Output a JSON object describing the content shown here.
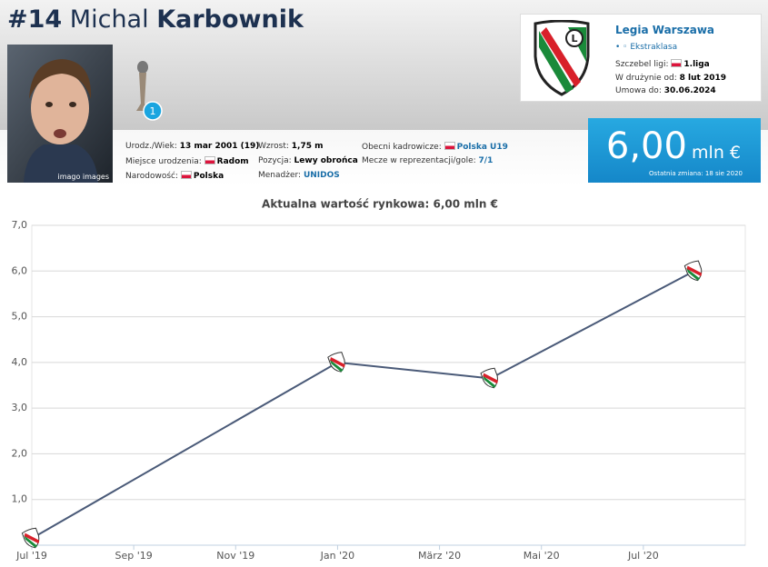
{
  "header": {
    "number": "#14",
    "first_name": "Michal",
    "last_name": "Karbownik"
  },
  "photo_caption": "imago images",
  "trophy_count": "1",
  "info": [
    {
      "label": "Urodz./Wiek:",
      "value": "13 mar 2001 (19)"
    },
    {
      "label": "Miejsce urodzenia:",
      "value": "Radom"
    },
    {
      "label": "Narodowość:",
      "value": "Polska"
    },
    {
      "label": "Wzrost:",
      "value": "1,75 m"
    },
    {
      "label": "Pozycja:",
      "value": "Lewy obrońca"
    },
    {
      "label": "Menadżer:",
      "value": "UNIDOS"
    },
    {
      "label": "Obecni kadrowicze:",
      "value": "Polska U19"
    },
    {
      "label": "Mecze w reprezentacji/gole:",
      "value": "7/1"
    }
  ],
  "club": {
    "name": "Legia Warszawa",
    "league": "Ekstraklasa",
    "level_label": "Szczebel ligi:",
    "level": "1.liga",
    "joined_label": "W drużynie od:",
    "joined": "8 lut 2019",
    "contract_label": "Umowa do:",
    "contract": "30.06.2024"
  },
  "market_value": {
    "amount": "6,00",
    "unit": "mln €",
    "last_change": "Ostatnia zmiana: 18 sie 2020"
  },
  "chart_data": {
    "type": "line",
    "title": "Aktualna wartość rynkowa: 6,00 mln €",
    "x": [
      "2019-07",
      "2020-01",
      "2020-04",
      "2020-08"
    ],
    "values": [
      0.15,
      4.0,
      3.65,
      6.0
    ],
    "color": "#4a5a78",
    "xlim": [
      "2019-07",
      "2020-09"
    ],
    "xticks": [
      {
        "value": "2019-07",
        "label": "Jul '19"
      },
      {
        "value": "2019-09",
        "label": "Sep '19"
      },
      {
        "value": "2019-11",
        "label": "Nov '19"
      },
      {
        "value": "2020-01",
        "label": "Jan '20"
      },
      {
        "value": "2020-03",
        "label": "März '20"
      },
      {
        "value": "2020-05",
        "label": "Mai '20"
      },
      {
        "value": "2020-07",
        "label": "Jul '20"
      }
    ],
    "ylim": [
      0,
      7
    ],
    "yticks": [
      {
        "value": 1,
        "label": "1,0"
      },
      {
        "value": 2,
        "label": "2,0"
      },
      {
        "value": 3,
        "label": "3,0"
      },
      {
        "value": 4,
        "label": "4,0"
      },
      {
        "value": 5,
        "label": "5,0"
      },
      {
        "value": 6,
        "label": "6,0"
      },
      {
        "value": 7,
        "label": "7,0"
      }
    ],
    "grid": true
  }
}
